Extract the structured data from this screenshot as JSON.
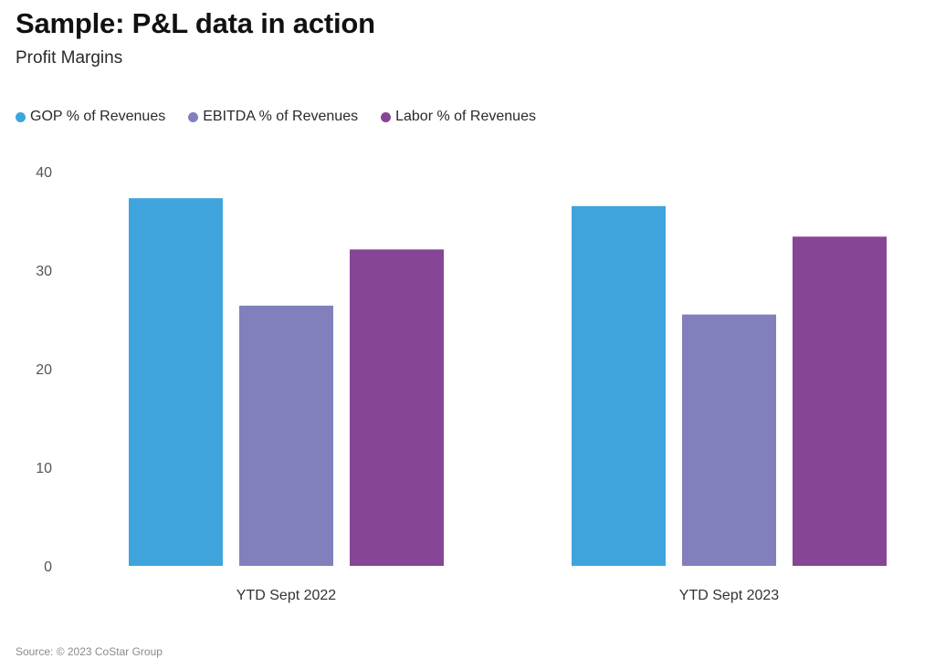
{
  "header": {
    "title": "Sample: P&L data in action",
    "subtitle": "Profit Margins"
  },
  "footer": {
    "source": "Source: © 2023 CoStar Group"
  },
  "chart_data": {
    "type": "bar",
    "title": "Sample: P&L data in action",
    "subtitle": "Profit Margins",
    "xlabel": "",
    "ylabel": "",
    "categories": [
      "YTD Sept 2022",
      "YTD Sept 2023"
    ],
    "series": [
      {
        "name": "GOP % of Revenues",
        "color": "#3fa4dc",
        "values": [
          37.3,
          36.5
        ]
      },
      {
        "name": "EBITDA % of Revenues",
        "color": "#8180bd",
        "values": [
          26.4,
          25.5
        ]
      },
      {
        "name": "Labor % of Revenues",
        "color": "#874595",
        "values": [
          32.1,
          33.4
        ]
      }
    ],
    "ylim": [
      0,
      40
    ],
    "yticks": [
      "0",
      "10",
      "20",
      "30",
      "40"
    ],
    "grid": false,
    "legend_position": "top-left"
  }
}
